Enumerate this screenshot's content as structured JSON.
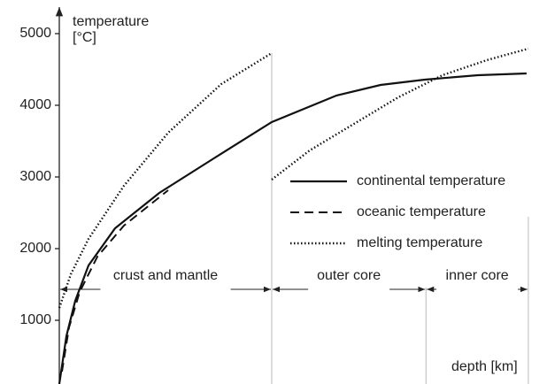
{
  "chart_data": {
    "type": "line",
    "y_label": "temperature",
    "y_unit": "[°C]",
    "x_label": "depth [km]",
    "xlim": [
      0,
      6371
    ],
    "ylim": [
      0,
      5300
    ],
    "yticks": [
      1000,
      2000,
      3000,
      4000,
      5000
    ],
    "legend": "right",
    "series": [
      {
        "name": "continental temperature",
        "color": "#111",
        "dash": "solid",
        "x": [
          0,
          96,
          216,
          397,
          757,
          1358,
          2079,
          2885,
          3762,
          4363,
          4964,
          5685,
          6346
        ],
        "values": [
          111,
          778,
          1272,
          1765,
          2284,
          2778,
          3247,
          3765,
          4136,
          4284,
          4358,
          4420,
          4444
        ]
      },
      {
        "name": "oceanic temperature",
        "color": "#111",
        "dash": "dashed",
        "x": [
          36,
          132,
          276,
          517,
          877,
          1478
        ],
        "values": [
          284,
          901,
          1395,
          1889,
          2321,
          2815
        ]
      },
      {
        "name": "melting temperature",
        "color": "#111",
        "dash": "dotted",
        "x": [
          0,
          156,
          397,
          877,
          1478,
          2200,
          2885,
          2885,
          2885,
          3401,
          4002,
          4603,
          5204,
          5805,
          6370
        ],
        "values": [
          1173,
          1642,
          2136,
          2877,
          3617,
          4296,
          4728,
          null,
          2963,
          3370,
          3741,
          4111,
          4420,
          4630,
          4790
        ]
      }
    ],
    "regions": [
      {
        "label": "crust and mantle",
        "from": 0,
        "to": 2885
      },
      {
        "label": "outer core",
        "from": 2885,
        "to": 4980
      },
      {
        "label": "inner core",
        "from": 4980,
        "to": 6370
      }
    ]
  }
}
